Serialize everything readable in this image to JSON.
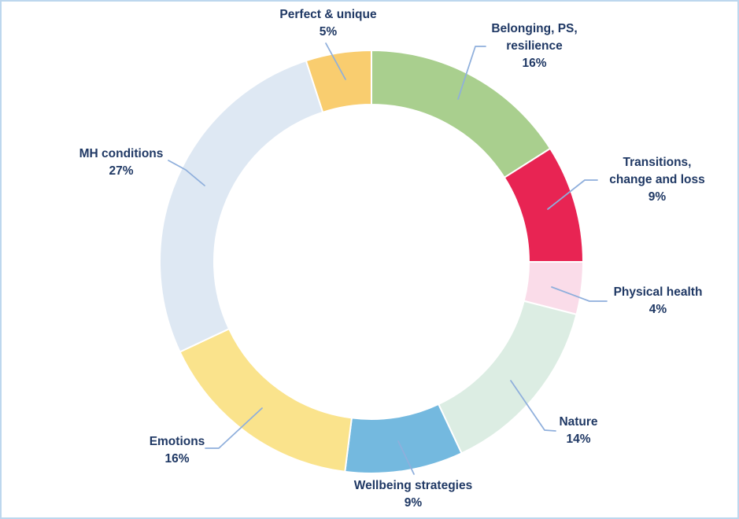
{
  "colors": {
    "frame_border": "#BDD7EE",
    "background": "#FFFFFF",
    "text": "#1F3864",
    "leader_line": "#8FAFDC",
    "slice_border": "#FFFFFF"
  },
  "chart_data": {
    "type": "pie",
    "subtype": "donut",
    "title": "",
    "unit": "%",
    "start_angle_deg": 0,
    "direction": "clockwise",
    "inner_radius_ratio": 0.7435,
    "total": 100,
    "legend_position": "none",
    "data_labels": "outside-with-leader-lines",
    "segments": [
      {
        "label": "Belonging, PS, resilience",
        "value": 16,
        "color": "#A9CF8E",
        "display_lines": [
          "Belonging, PS,",
          "resilience",
          "16%"
        ]
      },
      {
        "label": "Transitions, change and loss",
        "value": 9,
        "color": "#E82453",
        "display_lines": [
          "Transitions,",
          "change and loss",
          "9%"
        ]
      },
      {
        "label": "Physical health",
        "value": 4,
        "color": "#FADCE9",
        "display_lines": [
          "Physical health",
          "4%"
        ]
      },
      {
        "label": "Nature",
        "value": 14,
        "color": "#DCEDE3",
        "display_lines": [
          "Nature",
          "14%"
        ]
      },
      {
        "label": "Wellbeing strategies",
        "value": 9,
        "color": "#74B9DF",
        "display_lines": [
          "Wellbeing strategies",
          "9%"
        ]
      },
      {
        "label": "Emotions",
        "value": 16,
        "color": "#FAE38C",
        "display_lines": [
          "Emotions",
          "16%"
        ]
      },
      {
        "label": "MH conditions",
        "value": 27,
        "color": "#DEE8F3",
        "display_lines": [
          "MH conditions",
          "27%"
        ]
      },
      {
        "label": "Perfect & unique",
        "value": 5,
        "color": "#F9CD6F",
        "display_lines": [
          "Perfect & unique",
          "5%"
        ]
      }
    ]
  }
}
